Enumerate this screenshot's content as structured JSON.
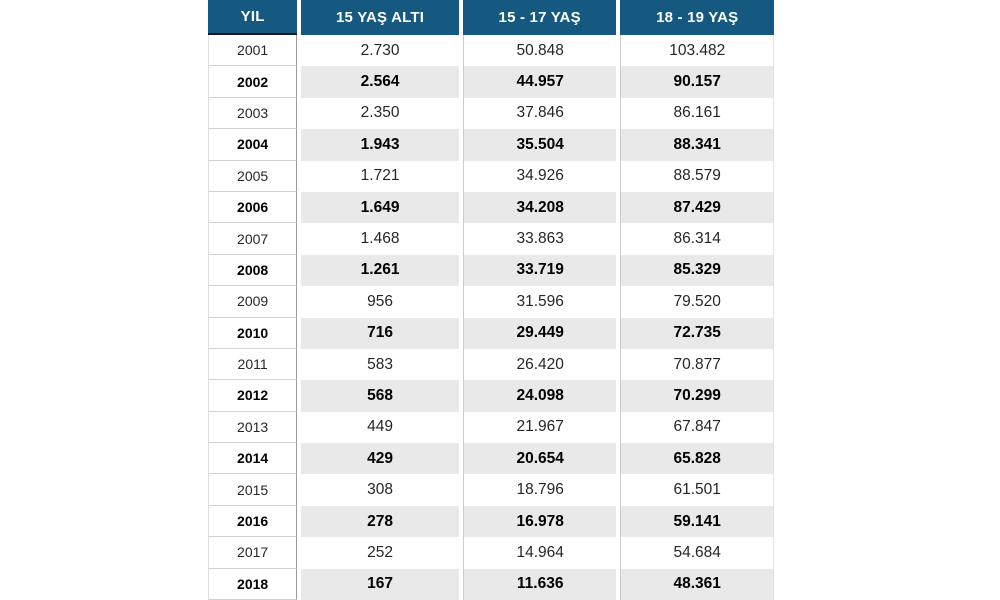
{
  "table": {
    "header": {
      "year": "YIL",
      "col1": "15 YAŞ ALTI",
      "col2": "15 - 17 YAŞ",
      "col3": "18 - 19 YAŞ"
    },
    "rows": [
      {
        "year": "2001",
        "v1": "2.730",
        "v2": "50.848",
        "v3": "103.482"
      },
      {
        "year": "2002",
        "v1": "2.564",
        "v2": "44.957",
        "v3": "90.157"
      },
      {
        "year": "2003",
        "v1": "2.350",
        "v2": "37.846",
        "v3": "86.161"
      },
      {
        "year": "2004",
        "v1": "1.943",
        "v2": "35.504",
        "v3": "88.341"
      },
      {
        "year": "2005",
        "v1": "1.721",
        "v2": "34.926",
        "v3": "88.579"
      },
      {
        "year": "2006",
        "v1": "1.649",
        "v2": "34.208",
        "v3": "87.429"
      },
      {
        "year": "2007",
        "v1": "1.468",
        "v2": "33.863",
        "v3": "86.314"
      },
      {
        "year": "2008",
        "v1": "1.261",
        "v2": "33.719",
        "v3": "85.329"
      },
      {
        "year": "2009",
        "v1": "956",
        "v2": "31.596",
        "v3": "79.520"
      },
      {
        "year": "2010",
        "v1": "716",
        "v2": "29.449",
        "v3": "72.735"
      },
      {
        "year": "2011",
        "v1": "583",
        "v2": "26.420",
        "v3": "70.877"
      },
      {
        "year": "2012",
        "v1": "568",
        "v2": "24.098",
        "v3": "70.299"
      },
      {
        "year": "2013",
        "v1": "449",
        "v2": "21.967",
        "v3": "67.847"
      },
      {
        "year": "2014",
        "v1": "429",
        "v2": "20.654",
        "v3": "65.828"
      },
      {
        "year": "2015",
        "v1": "308",
        "v2": "18.796",
        "v3": "61.501"
      },
      {
        "year": "2016",
        "v1": "278",
        "v2": "16.978",
        "v3": "59.141"
      },
      {
        "year": "2017",
        "v1": "252",
        "v2": "14.964",
        "v3": "54.684"
      },
      {
        "year": "2018",
        "v1": "167",
        "v2": "11.636",
        "v3": "48.361"
      }
    ]
  },
  "colors": {
    "header_bg": "#155880",
    "header_text": "#ffffff",
    "header_underline": "#16161f",
    "stripe_bg": "#e9e9e9",
    "year_divider": "#9a9a9a",
    "row_line": "#d2d2d2",
    "column_line": "#cccccc",
    "text_normal": "#262626",
    "text_bold": "#000000"
  },
  "chart_data": {
    "type": "table",
    "title": "",
    "columns": [
      "YIL",
      "15 YAŞ ALTI",
      "15 - 17 YAŞ",
      "18 - 19 YAŞ"
    ],
    "categories": [
      2001,
      2002,
      2003,
      2004,
      2005,
      2006,
      2007,
      2008,
      2009,
      2010,
      2011,
      2012,
      2013,
      2014,
      2015,
      2016,
      2017,
      2018
    ],
    "series": [
      {
        "name": "15 YAŞ ALTI",
        "values": [
          2730,
          2564,
          2350,
          1943,
          1721,
          1649,
          1468,
          1261,
          956,
          716,
          583,
          568,
          449,
          429,
          308,
          278,
          252,
          167
        ]
      },
      {
        "name": "15 - 17 YAŞ",
        "values": [
          50848,
          44957,
          37846,
          35504,
          34926,
          34208,
          33863,
          33719,
          31596,
          29449,
          26420,
          24098,
          21967,
          20654,
          18796,
          16978,
          14964,
          11636
        ]
      },
      {
        "name": "18 - 19 YAŞ",
        "values": [
          103482,
          90157,
          86161,
          88341,
          88579,
          87429,
          86314,
          85329,
          79520,
          72735,
          70877,
          70299,
          67847,
          65828,
          61501,
          59141,
          54684,
          48361
        ]
      }
    ],
    "layout": {
      "striped_rows": "even years bold with gray background",
      "number_format": "thousands separated by dot (Turkish)"
    }
  }
}
